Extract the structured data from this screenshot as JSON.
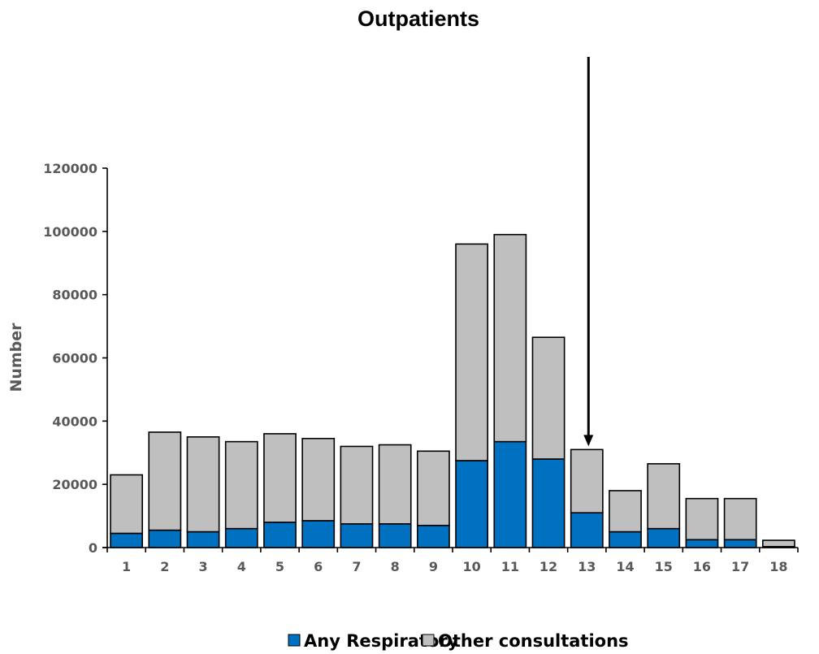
{
  "chart_data": {
    "type": "bar",
    "stacked": true,
    "title": "Outpatients",
    "ylabel": "Number",
    "xlabel": "",
    "ylim": [
      0,
      120000
    ],
    "yticks": [
      0,
      20000,
      40000,
      60000,
      80000,
      100000,
      120000
    ],
    "ytick_labels": [
      "0",
      "20000",
      "40000",
      "60000",
      "80000",
      "100000",
      "120000"
    ],
    "categories": [
      "1",
      "2",
      "3",
      "4",
      "5",
      "6",
      "7",
      "8",
      "9",
      "10",
      "11",
      "12",
      "13",
      "14",
      "15",
      "16",
      "17",
      "18"
    ],
    "series": [
      {
        "name": "Any Respiratory",
        "color": "#0070c0",
        "values": [
          4500,
          5500,
          5000,
          6000,
          8000,
          8500,
          7500,
          7500,
          7000,
          27500,
          33500,
          28000,
          11000,
          5000,
          6000,
          2500,
          2500,
          300
        ]
      },
      {
        "name": "Other consultations",
        "color": "#bfbfbf",
        "values": [
          18500,
          31000,
          30000,
          27500,
          28000,
          26000,
          24500,
          25000,
          23500,
          68500,
          65500,
          38500,
          20000,
          13000,
          20500,
          13000,
          13000,
          2000
        ]
      }
    ],
    "annotation": {
      "type": "arrow",
      "category": "13",
      "color": "#000000"
    },
    "legend_position": "bottom",
    "grid": false
  }
}
